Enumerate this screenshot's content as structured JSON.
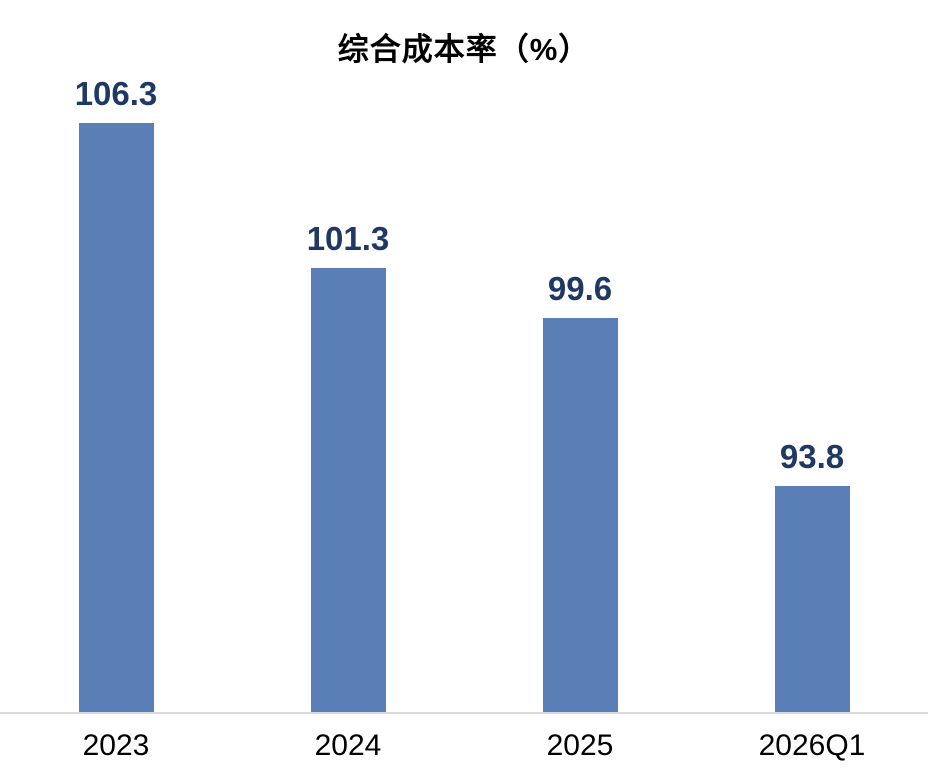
{
  "page": {
    "background_color": "#FFFFFF"
  },
  "chart_data": {
    "type": "bar",
    "title": "综合成本率（%）",
    "categories": [
      "2023",
      "2024",
      "2025",
      "2026Q1"
    ],
    "values": [
      106.3,
      101.3,
      99.6,
      93.8
    ],
    "value_labels": [
      "106.3",
      "101.3",
      "99.6",
      "93.8"
    ],
    "xlabel": "",
    "ylabel": "",
    "ylim": [
      86,
      108
    ],
    "grid": false,
    "legend_position": "none",
    "axis_ticks_visible": false,
    "colors": {
      "bar_fill": "#5A7FB7",
      "value_label": "#1F3864",
      "category_label": "#000000",
      "title": "#000000",
      "axis_line": "#D9D9D9"
    }
  }
}
